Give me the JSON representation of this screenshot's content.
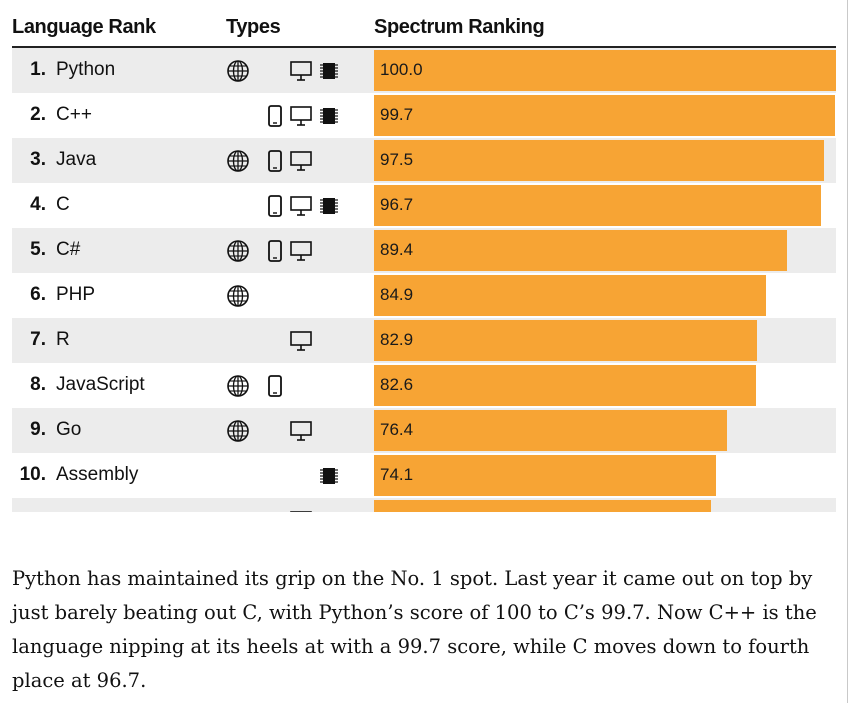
{
  "chart_data": {
    "type": "bar",
    "orientation": "horizontal",
    "column_headers": {
      "rank": "Language Rank",
      "types": "Types",
      "ranking": "Spectrum Ranking"
    },
    "xlim": [
      0,
      100
    ],
    "rows": [
      {
        "rank": "1.",
        "language": "Python",
        "value": 100.0,
        "value_label": "100.0",
        "types": [
          "web",
          "desktop",
          "embedded"
        ]
      },
      {
        "rank": "2.",
        "language": "C++",
        "value": 99.7,
        "value_label": "99.7",
        "types": [
          "mobile",
          "desktop",
          "embedded"
        ]
      },
      {
        "rank": "3.",
        "language": "Java",
        "value": 97.5,
        "value_label": "97.5",
        "types": [
          "web",
          "mobile",
          "desktop"
        ]
      },
      {
        "rank": "4.",
        "language": "C",
        "value": 96.7,
        "value_label": "96.7",
        "types": [
          "mobile",
          "desktop",
          "embedded"
        ]
      },
      {
        "rank": "5.",
        "language": "C#",
        "value": 89.4,
        "value_label": "89.4",
        "types": [
          "web",
          "mobile",
          "desktop"
        ]
      },
      {
        "rank": "6.",
        "language": "PHP",
        "value": 84.9,
        "value_label": "84.9",
        "types": [
          "web"
        ]
      },
      {
        "rank": "7.",
        "language": "R",
        "value": 82.9,
        "value_label": "82.9",
        "types": [
          "desktop"
        ]
      },
      {
        "rank": "8.",
        "language": "JavaScript",
        "value": 82.6,
        "value_label": "82.6",
        "types": [
          "web",
          "mobile"
        ]
      },
      {
        "rank": "9.",
        "language": "Go",
        "value": 76.4,
        "value_label": "76.4",
        "types": [
          "web",
          "desktop"
        ]
      },
      {
        "rank": "10.",
        "language": "Assembly",
        "value": 74.1,
        "value_label": "74.1",
        "types": [
          "embedded"
        ]
      },
      {
        "rank": "",
        "language": "",
        "value": 73,
        "value_label": "",
        "types": [
          "desktop"
        ]
      }
    ],
    "icons": {
      "web": "globe-icon",
      "mobile": "mobile-phone-icon",
      "desktop": "desktop-monitor-icon",
      "embedded": "chip-icon"
    },
    "bar_color": "#f7a434",
    "grid": false
  },
  "caption": "Python has maintained its grip on the No. 1 spot. Last year it came out on top by just barely beating out C, with Python’s score of 100 to C’s 99.7. Now C++ is the language nipping at its heels at with a 99.7 score, while C moves down to fourth place at 96.7."
}
